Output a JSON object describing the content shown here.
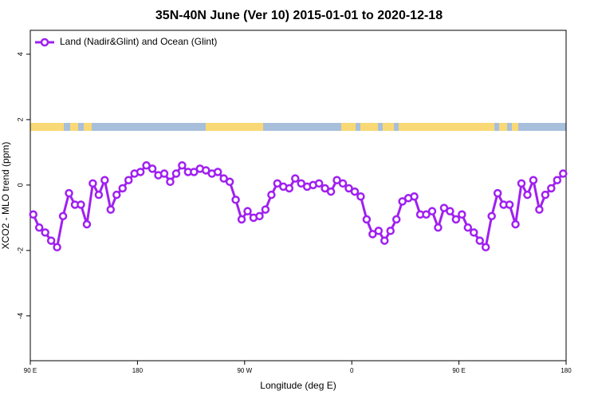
{
  "chart_data": {
    "type": "line",
    "title": "35N-40N June (Ver 10)   2015-01-01 to 2020-12-18",
    "xlabel": "Longitude (deg E)",
    "ylabel": "XCO2 - MLO trend (ppm)",
    "x": [
      92.5,
      97.5,
      102.5,
      107.5,
      112.5,
      117.5,
      122.5,
      127.5,
      132.5,
      137.5,
      142.5,
      147.5,
      152.5,
      157.5,
      162.5,
      167.5,
      172.5,
      177.5,
      182.5,
      187.5,
      192.5,
      197.5,
      202.5,
      207.5,
      212.5,
      217.5,
      222.5,
      227.5,
      232.5,
      237.5,
      242.5,
      247.5,
      252.5,
      257.5,
      262.5,
      267.5,
      272.5,
      277.5,
      282.5,
      287.5,
      292.5,
      297.5,
      302.5,
      307.5,
      312.5,
      317.5,
      322.5,
      327.5,
      332.5,
      337.5,
      342.5,
      347.5,
      352.5,
      357.5,
      362.5,
      367.5,
      372.5,
      377.5,
      382.5,
      387.5,
      392.5,
      397.5,
      402.5,
      407.5,
      412.5,
      417.5,
      422.5,
      427.5,
      432.5,
      437.5,
      442.5,
      447.5,
      452.5,
      457.5,
      462.5,
      467.5,
      472.5,
      477.5,
      482.5,
      487.5,
      492.5,
      497.5,
      502.5,
      507.5,
      512.5,
      517.5,
      522.5,
      527.5,
      532.5,
      537.5
    ],
    "series": [
      {
        "name": "Land (Nadir&Glint) and Ocean (Glint)",
        "color": "#a020f0",
        "values": [
          -0.9,
          -1.3,
          -1.45,
          -1.7,
          -1.9,
          -0.95,
          -0.25,
          -0.6,
          -0.6,
          -1.2,
          0.05,
          -0.3,
          0.15,
          -0.75,
          -0.3,
          -0.1,
          0.15,
          0.35,
          0.4,
          0.6,
          0.5,
          0.3,
          0.35,
          0.1,
          0.35,
          0.6,
          0.4,
          0.4,
          0.5,
          0.45,
          0.35,
          0.4,
          0.2,
          0.1,
          -0.45,
          -1.05,
          -0.8,
          -1.0,
          -0.95,
          -0.75,
          -0.3,
          0.05,
          -0.05,
          -0.1,
          0.2,
          0.05,
          -0.05,
          0,
          0.05,
          -0.1,
          -0.2,
          0.15,
          0.05,
          -0.1,
          -0.2,
          -0.35,
          -1.05,
          -1.5,
          -1.4,
          -1.7,
          -1.4,
          -1.05,
          -0.5,
          -0.4,
          -0.35,
          -0.9,
          -0.9,
          -0.8,
          -1.3,
          -0.7,
          -0.8,
          -1.05,
          -0.9,
          -1.3,
          -1.45,
          -1.7,
          -1.9,
          -0.95,
          -0.25,
          -0.6,
          -0.6,
          -1.2,
          0.05,
          -0.3,
          0.15,
          -0.75,
          -0.3,
          -0.1,
          0.15,
          0.35
        ]
      }
    ],
    "xlim": [
      90,
      540
    ],
    "xticks": [
      {
        "value": 90,
        "label": "90 E"
      },
      {
        "value": 180,
        "label": "180"
      },
      {
        "value": 270,
        "label": "90 W"
      },
      {
        "value": 360,
        "label": "0"
      },
      {
        "value": 450,
        "label": "90 E"
      },
      {
        "value": 540,
        "label": "180"
      }
    ],
    "ylim": [
      -5.37,
      4.73
    ],
    "yticks": [
      -4,
      -2,
      0,
      2,
      4
    ],
    "legend": "top-left"
  }
}
